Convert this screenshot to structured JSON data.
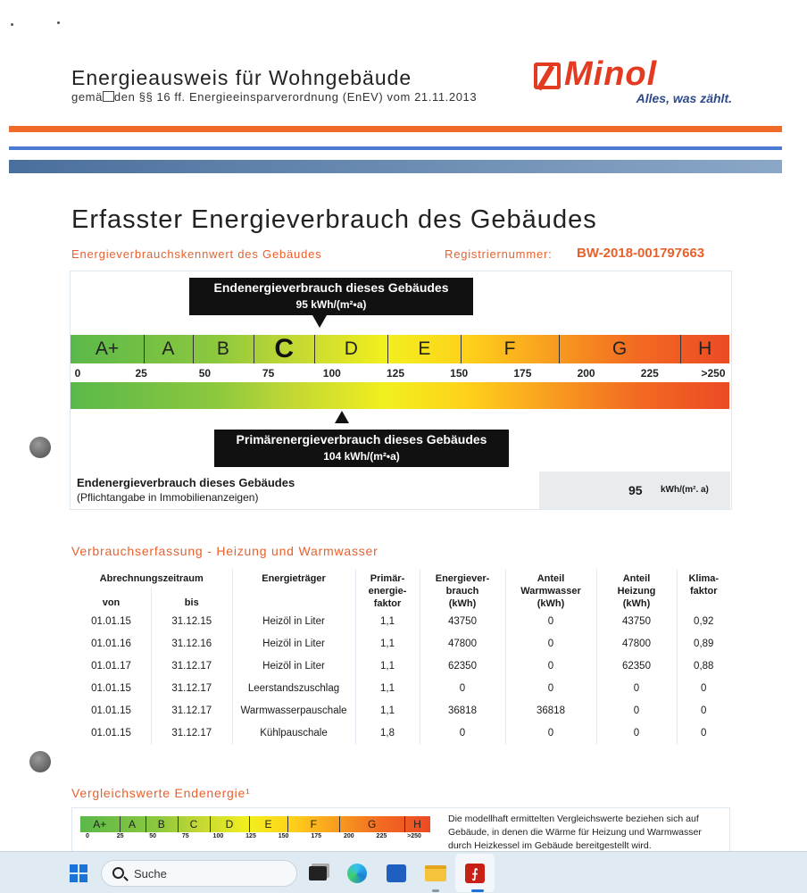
{
  "header": {
    "title": "Energieausweis für Wohngebäude",
    "subtitle_pre": "gemä",
    "subtitle_post": "den §§ 16 ff. Energieeinsparverordnung (EnEV) vom 21.11.2013",
    "logo_name": "Minol",
    "logo_slogan": "Alles, was zählt."
  },
  "section": {
    "title": "Erfasster Energieverbrauch des Gebäudes",
    "kennwert_label": "Energieverbrauchskennwert des Gebäudes",
    "registry_label": "Registriernummer:",
    "registry_number": "BW-2018-001797663"
  },
  "scale": {
    "classes": [
      "A+",
      "A",
      "B",
      "C",
      "D",
      "E",
      "F",
      "G",
      "H"
    ],
    "active_class": "C",
    "ticks": [
      "0",
      "25",
      "50",
      "75",
      "100",
      "125",
      "150",
      "175",
      "200",
      "225",
      ">250"
    ],
    "end_callout_title": "Endenergieverbrauch dieses Gebäudes",
    "end_callout_value": "95 kWh/(m²•a)",
    "end_value": 95,
    "primary_callout_title": "Primärenergieverbrauch dieses Gebäudes",
    "primary_callout_value": "104 kWh/(m²•a)",
    "primary_value": 104
  },
  "summary": {
    "label": "Endenergieverbrauch dieses Gebäudes",
    "sublabel": "(Pflichtangabe in Immobilienanzeigen)",
    "value": "95",
    "unit": "kWh/(m². a)"
  },
  "consumption": {
    "title": "Verbrauchserfassung - Heizung und Warmwasser",
    "headers": {
      "period": "Abrechnungszeitraum",
      "from": "von",
      "to": "bis",
      "carrier": "Energieträger",
      "primary": "Primär-\nenergie-\nfaktor",
      "consumption": "Energiever-\nbrauch\n(kWh)",
      "water": "Anteil\nWarmwasser\n(kWh)",
      "heating": "Anteil\nHeizung\n(kWh)",
      "climate": "Klima-\nfaktor"
    },
    "rows": [
      [
        "01.01.15",
        "31.12.15",
        "Heizöl in Liter",
        "1,1",
        "43750",
        "0",
        "43750",
        "0,92"
      ],
      [
        "01.01.16",
        "31.12.16",
        "Heizöl in Liter",
        "1,1",
        "47800",
        "0",
        "47800",
        "0,89"
      ],
      [
        "01.01.17",
        "31.12.17",
        "Heizöl in Liter",
        "1,1",
        "62350",
        "0",
        "62350",
        "0,88"
      ],
      [
        "01.01.15",
        "31.12.17",
        "Leerstandszuschlag",
        "1,1",
        "0",
        "0",
        "0",
        "0"
      ],
      [
        "01.01.15",
        "31.12.17",
        "Warmwasserpauschale",
        "1,1",
        "36818",
        "36818",
        "0",
        "0"
      ],
      [
        "01.01.15",
        "31.12.17",
        "Kühlpauschale",
        "1,8",
        "0",
        "0",
        "0",
        "0"
      ]
    ]
  },
  "comparison": {
    "title": "Vergleichswerte Endenergie¹",
    "classes": [
      "A+",
      "A",
      "B",
      "C",
      "D",
      "E",
      "F",
      "G",
      "H"
    ],
    "ticks": [
      "0",
      "25",
      "50",
      "75",
      "100",
      "125",
      "150",
      "175",
      "200",
      "225",
      ">250"
    ],
    "text": "Die modellhaft ermittelten Vergleichswerte beziehen sich auf Gebäude, in denen die Wärme für Heizung und Warmwasser durch Heizkessel im Gebäude bereitgestellt wird."
  },
  "taskbar": {
    "search_label": "Suche"
  },
  "colors": {
    "accent_orange": "#e8602c",
    "brand_red": "#e23b22",
    "callout_black": "#111111"
  }
}
